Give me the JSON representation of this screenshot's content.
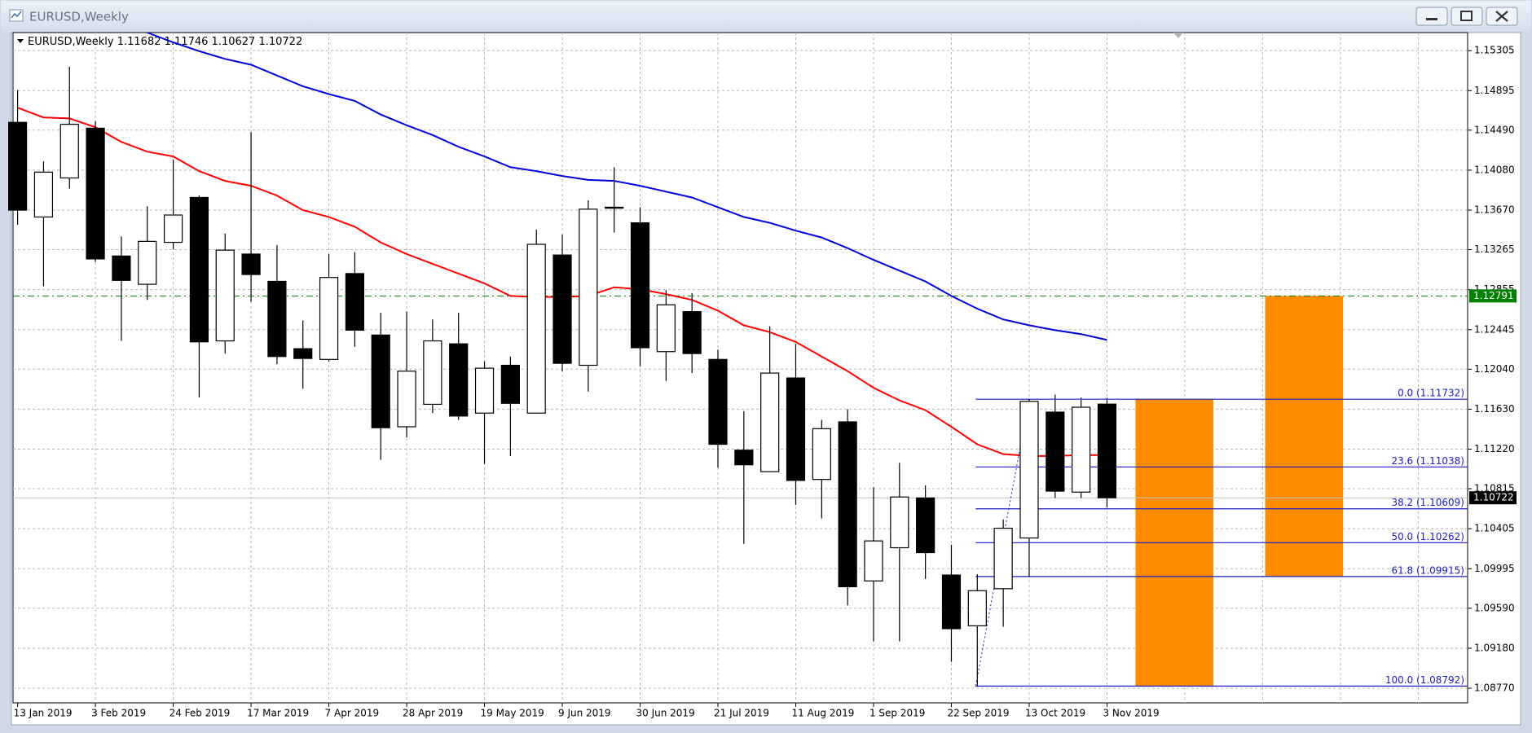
{
  "window_title": "EURUSD,Weekly",
  "chart_data": {
    "type": "candlestick",
    "title": "EURUSD,Weekly",
    "categories": [
      "13 Jan 2019",
      null,
      null,
      "3 Feb 2019",
      null,
      null,
      "24 Feb 2019",
      null,
      null,
      "17 Mar 2019",
      null,
      null,
      "7 Apr 2019",
      null,
      null,
      "28 Apr 2019",
      null,
      null,
      "19 May 2019",
      null,
      null,
      "9 Jun 2019",
      null,
      null,
      "30 Jun 2019",
      null,
      null,
      "21 Jul 2019",
      null,
      null,
      "11 Aug 2019",
      null,
      null,
      "1 Sep 2019",
      null,
      null,
      "22 Sep 2019",
      null,
      null,
      "13 Oct 2019",
      null,
      null,
      "3 Nov 2019"
    ],
    "open": [
      1.1457,
      1.136,
      1.14,
      1.1451,
      1.132,
      1.1291,
      1.1334,
      1.138,
      1.1233,
      1.1322,
      1.1294,
      1.1225,
      1.1214,
      1.1302,
      1.1239,
      1.1145,
      1.1168,
      1.123,
      1.1159,
      1.1208,
      1.1159,
      1.1321,
      1.1208,
      1.137,
      1.1354,
      1.1222,
      1.1263,
      1.1214,
      1.1121,
      1.1099,
      1.1195,
      1.1091,
      1.115,
      1.0987,
      1.1021,
      1.1072,
      1.0993,
      1.0941,
      1.0979,
      1.1031,
      1.116,
      1.1078,
      1.11682
    ],
    "high": [
      1.149,
      1.1417,
      1.1514,
      1.1458,
      1.134,
      1.1371,
      1.1419,
      1.1382,
      1.1343,
      1.1447,
      1.1331,
      1.1254,
      1.1322,
      1.1324,
      1.1262,
      1.1263,
      1.1255,
      1.1262,
      1.1212,
      1.1217,
      1.1347,
      1.1342,
      1.1377,
      1.1411,
      1.137,
      1.1285,
      1.1282,
      1.1224,
      1.1161,
      1.1248,
      1.123,
      1.1152,
      1.1163,
      1.1083,
      1.1108,
      1.1085,
      1.1024,
      1.0994,
      1.105,
      1.11732,
      1.1178,
      1.1175,
      1.11746
    ],
    "low": [
      1.1352,
      1.1289,
      1.1389,
      1.1314,
      1.1233,
      1.1275,
      1.1327,
      1.1175,
      1.122,
      1.1273,
      1.1209,
      1.1184,
      1.1212,
      1.1227,
      1.1111,
      1.1134,
      1.1159,
      1.1152,
      1.1107,
      1.1115,
      1.1159,
      1.1202,
      1.1181,
      1.1344,
      1.1207,
      1.1192,
      1.12,
      1.1103,
      1.1025,
      1.1099,
      1.1065,
      1.1051,
      1.0962,
      1.0925,
      1.0925,
      1.0989,
      1.0904,
      1.08792,
      1.094,
      1.0991,
      1.1072,
      1.1072,
      1.10627
    ],
    "close": [
      1.1367,
      1.1406,
      1.1455,
      1.1317,
      1.1295,
      1.1335,
      1.1362,
      1.1232,
      1.1326,
      1.1301,
      1.1217,
      1.1215,
      1.1298,
      1.1244,
      1.1144,
      1.1202,
      1.1233,
      1.1156,
      1.1205,
      1.1169,
      1.1332,
      1.121,
      1.1368,
      1.1369,
      1.1226,
      1.127,
      1.122,
      1.1127,
      1.1106,
      1.12,
      1.109,
      1.1143,
      1.0981,
      1.1028,
      1.1073,
      1.1016,
      1.0938,
      1.0977,
      1.1041,
      1.1171,
      1.1079,
      1.1165,
      1.10722
    ],
    "up_color": "#ffffff",
    "down_color": "#000000",
    "moving_averages": [
      {
        "color": "#ff0000",
        "values": [
          1.1472,
          1.1462,
          1.1461,
          1.1452,
          1.1437,
          1.1427,
          1.1422,
          1.1407,
          1.1397,
          1.1392,
          1.1382,
          1.1367,
          1.136,
          1.135,
          1.1334,
          1.1322,
          1.1312,
          1.1302,
          1.1292,
          1.1279,
          1.1278,
          1.1278,
          1.1279,
          1.1288,
          1.1286,
          1.1281,
          1.1275,
          1.1264,
          1.1249,
          1.1242,
          1.1232,
          1.1217,
          1.1202,
          1.1185,
          1.1172,
          1.1162,
          1.1145,
          1.1127,
          1.1117,
          1.1115,
          1.1115,
          1.1116,
          1.1116
        ]
      },
      {
        "color": "#0000dd",
        "values": [
          null,
          null,
          null,
          null,
          null,
          1.1549,
          1.1539,
          1.153,
          1.1522,
          1.1516,
          1.1505,
          1.1494,
          1.1486,
          1.1479,
          1.1465,
          1.1454,
          1.1444,
          1.1432,
          1.1422,
          1.1411,
          1.1407,
          1.1402,
          1.1398,
          1.1397,
          1.1392,
          1.1386,
          1.138,
          1.137,
          1.136,
          1.1354,
          1.1346,
          1.1339,
          1.1328,
          1.1316,
          1.1305,
          1.1294,
          1.1279,
          1.1266,
          1.1255,
          1.1249,
          1.1244,
          1.124,
          1.1234
        ]
      }
    ],
    "ylim": [
      1.0862,
      1.1549
    ],
    "yticks": [
      1.15305,
      1.14895,
      {
        "value": 1.1449,
        "label": "1.14490"
      },
      {
        "value": 1.1408,
        "label": "1.14080"
      },
      {
        "value": 1.1367,
        "label": "1.13670"
      },
      1.13265,
      1.12855,
      1.12445,
      {
        "value": 1.1204,
        "label": "1.12040"
      },
      {
        "value": 1.1163,
        "label": "1.11630"
      },
      {
        "value": 1.1122,
        "label": "1.11220"
      },
      1.10815,
      1.10405,
      1.09995,
      {
        "value": 1.0959,
        "label": "1.09590"
      },
      {
        "value": 1.0918,
        "label": "1.09180"
      },
      {
        "value": 1.0877,
        "label": "1.08770"
      }
    ],
    "grid": true,
    "price_lines": [
      {
        "value": 1.12791,
        "color": "#008000"
      },
      {
        "value": 1.10722,
        "color": "#000000"
      }
    ],
    "fibonacci": {
      "color": "#1c1cc8",
      "levels": [
        {
          "value": 1.11732,
          "label": "0.0 (1.11732)"
        },
        {
          "value": 1.11038,
          "label": "23.6 (1.11038)"
        },
        {
          "value": 1.10609,
          "label": "38.2 (1.10609)"
        },
        {
          "value": 1.10262,
          "label": "50.0 (1.10262)"
        },
        {
          "value": 1.09915,
          "label": "61.8 (1.09915)"
        },
        {
          "value": 1.08792,
          "label": "100.0 (1.08792)"
        }
      ]
    },
    "rectangles": [
      {
        "color": "#ff8c00",
        "top": 1.11732,
        "bottom": 1.08792
      },
      {
        "color": "#ff8c00",
        "top": 1.12791,
        "bottom": 1.09915
      }
    ]
  }
}
